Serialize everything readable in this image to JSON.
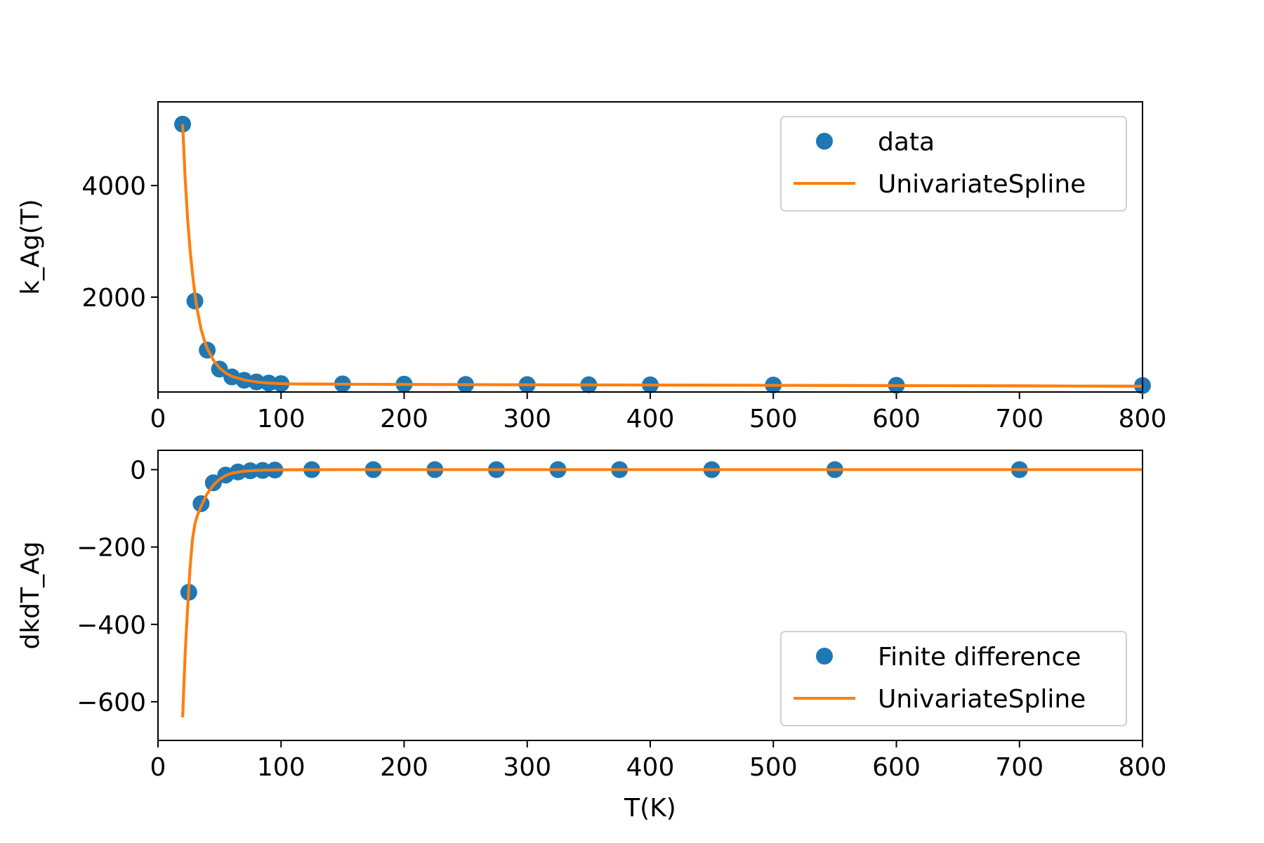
{
  "chart_data": [
    {
      "type": "line",
      "ylabel": "k_Ag(T)",
      "xlabel": "",
      "xlim": [
        0,
        800
      ],
      "ylim": [
        300,
        5500
      ],
      "xticks": [
        0,
        100,
        200,
        300,
        400,
        500,
        600,
        700,
        800
      ],
      "yticks": [
        2000,
        4000
      ],
      "legend_position": "top-right",
      "series": [
        {
          "name": "data",
          "kind": "scatter",
          "color": "#1f77b4",
          "x": [
            20,
            30,
            40,
            50,
            60,
            70,
            80,
            90,
            100,
            150,
            200,
            250,
            300,
            350,
            400,
            500,
            600,
            800
          ],
          "y": [
            5100,
            1930,
            1050,
            710,
            570,
            510,
            480,
            460,
            450,
            445,
            440,
            435,
            432,
            430,
            428,
            425,
            420,
            415
          ]
        },
        {
          "name": "UnivariateSpline",
          "kind": "line",
          "color": "#ff7f0e",
          "x": [
            20,
            22,
            24,
            26,
            28,
            30,
            32,
            35,
            38,
            40,
            45,
            50,
            55,
            60,
            70,
            80,
            90,
            100,
            110,
            150,
            200,
            300,
            400,
            500,
            600,
            700,
            800
          ],
          "y": [
            5100,
            4150,
            3420,
            2860,
            2420,
            2050,
            1760,
            1430,
            1200,
            1080,
            870,
            730,
            640,
            580,
            515,
            480,
            460,
            450,
            445,
            440,
            436,
            430,
            425,
            420,
            415,
            410,
            405
          ]
        }
      ]
    },
    {
      "type": "line",
      "ylabel": "dkdT_Ag",
      "xlabel": "T(K)",
      "xlim": [
        0,
        800
      ],
      "ylim": [
        -700,
        50
      ],
      "xticks": [
        0,
        100,
        200,
        300,
        400,
        500,
        600,
        700,
        800
      ],
      "yticks": [
        0,
        -200,
        -400,
        -600
      ],
      "legend_position": "lower-right",
      "series": [
        {
          "name": "Finite difference",
          "kind": "scatter",
          "color": "#1f77b4",
          "x": [
            25,
            35,
            45,
            55,
            65,
            75,
            85,
            95,
            125,
            175,
            225,
            275,
            325,
            375,
            450,
            550,
            700
          ],
          "y": [
            -317,
            -88,
            -34,
            -14,
            -6,
            -3,
            -2,
            -1,
            0,
            0,
            0,
            0,
            0,
            0,
            0,
            0,
            0
          ]
        },
        {
          "name": "UnivariateSpline",
          "kind": "line",
          "color": "#ff7f0e",
          "x": [
            20,
            21,
            22,
            23,
            24,
            25,
            26,
            28,
            30,
            32,
            35,
            38,
            40,
            45,
            50,
            55,
            60,
            70,
            80,
            90,
            100,
            150,
            200,
            800
          ],
          "y": [
            -640,
            -560,
            -480,
            -420,
            -360,
            -310,
            -255,
            -180,
            -140,
            -118,
            -95,
            -75,
            -62,
            -40,
            -25,
            -15,
            -9,
            -4,
            -2,
            -1,
            -0.5,
            0,
            0,
            0
          ]
        }
      ]
    }
  ]
}
